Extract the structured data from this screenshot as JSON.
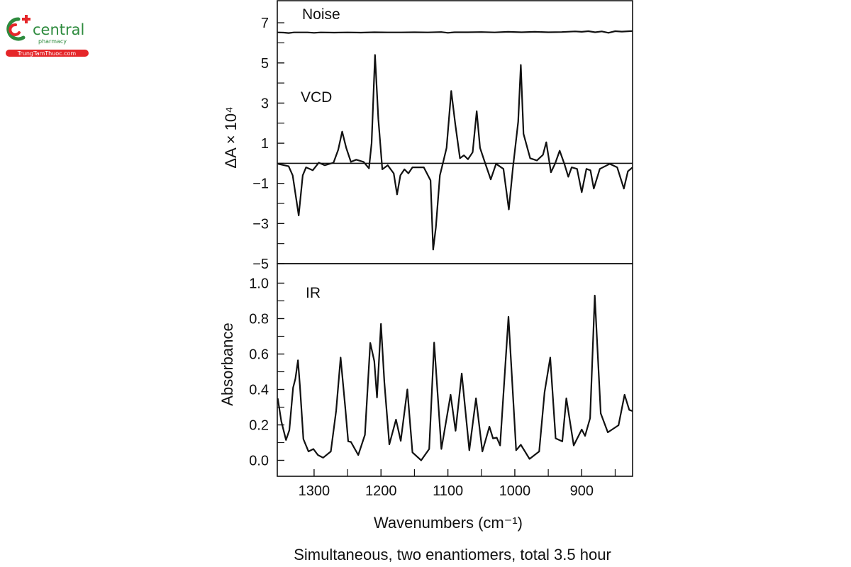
{
  "logo": {
    "brand": "central",
    "sub": "pharmacy",
    "site": "TrungTamThuoc.com",
    "colors": {
      "green": "#2e8b3e",
      "red": "#e52629"
    }
  },
  "figure": {
    "xlabel": "Wavenumbers (cm⁻¹)",
    "caption": "Simultaneous, two enantiomers, total 3.5 hour",
    "x_ticks": [
      "1300",
      "1200",
      "1100",
      "1000",
      "900"
    ],
    "x_tick_values": [
      1300,
      1200,
      1100,
      1000,
      900
    ],
    "x_minor_tick_values": [
      1250,
      1150,
      1050,
      950,
      850
    ],
    "xlim": [
      1355,
      824
    ],
    "x_reversed": true
  },
  "chart_data": [
    {
      "type": "line",
      "panel": "top",
      "ylabel": "ΔA × 10⁴",
      "ylim": [
        -5,
        8.1
      ],
      "y_ticks": [
        "7",
        "5",
        "3",
        "1",
        "−1",
        "−3",
        "−5"
      ],
      "y_tick_values": [
        7,
        5,
        3,
        1,
        -1,
        -3,
        -5
      ],
      "y_minor_tick_values": [
        6,
        4,
        2,
        0,
        -2,
        -4
      ],
      "zero_line": 0,
      "grid": false,
      "annotations": [
        "Noise",
        "VCD"
      ],
      "series": [
        {
          "name": "Noise",
          "points": [
            [
              1355,
              6.52
            ],
            [
              1345,
              6.51
            ],
            [
              1338,
              6.49
            ],
            [
              1330,
              6.52
            ],
            [
              1310,
              6.52
            ],
            [
              1300,
              6.5
            ],
            [
              1290,
              6.52
            ],
            [
              1270,
              6.51
            ],
            [
              1250,
              6.52
            ],
            [
              1230,
              6.51
            ],
            [
              1210,
              6.53
            ],
            [
              1190,
              6.52
            ],
            [
              1170,
              6.52
            ],
            [
              1150,
              6.53
            ],
            [
              1130,
              6.52
            ],
            [
              1110,
              6.54
            ],
            [
              1100,
              6.5
            ],
            [
              1090,
              6.53
            ],
            [
              1070,
              6.53
            ],
            [
              1050,
              6.54
            ],
            [
              1030,
              6.52
            ],
            [
              1010,
              6.55
            ],
            [
              990,
              6.53
            ],
            [
              970,
              6.55
            ],
            [
              950,
              6.53
            ],
            [
              930,
              6.54
            ],
            [
              910,
              6.57
            ],
            [
              900,
              6.55
            ],
            [
              890,
              6.58
            ],
            [
              880,
              6.53
            ],
            [
              870,
              6.57
            ],
            [
              860,
              6.5
            ],
            [
              850,
              6.58
            ],
            [
              840,
              6.56
            ],
            [
              824,
              6.59
            ]
          ]
        },
        {
          "name": "VCD",
          "points": [
            [
              1354,
              -0.03
            ],
            [
              1338,
              -0.15
            ],
            [
              1332,
              -0.6
            ],
            [
              1323,
              -2.6
            ],
            [
              1317,
              -0.6
            ],
            [
              1312,
              -0.2
            ],
            [
              1302,
              -0.35
            ],
            [
              1293,
              0.03
            ],
            [
              1284,
              -0.1
            ],
            [
              1271,
              0.03
            ],
            [
              1264,
              0.67
            ],
            [
              1258,
              1.58
            ],
            [
              1252,
              0.77
            ],
            [
              1245,
              0.07
            ],
            [
              1237,
              0.18
            ],
            [
              1226,
              0.07
            ],
            [
              1218,
              -0.25
            ],
            [
              1214,
              1.0
            ],
            [
              1209,
              5.4
            ],
            [
              1204,
              2.2
            ],
            [
              1198,
              -0.3
            ],
            [
              1190,
              -0.1
            ],
            [
              1181,
              -0.5
            ],
            [
              1176,
              -1.55
            ],
            [
              1171,
              -0.6
            ],
            [
              1165,
              -0.3
            ],
            [
              1159,
              -0.5
            ],
            [
              1153,
              -0.2
            ],
            [
              1136,
              -0.2
            ],
            [
              1126,
              -0.85
            ],
            [
              1122,
              -4.3
            ],
            [
              1118,
              -3.2
            ],
            [
              1112,
              -0.6
            ],
            [
              1107,
              0.07
            ],
            [
              1102,
              0.77
            ],
            [
              1095,
              3.6
            ],
            [
              1089,
              1.95
            ],
            [
              1082,
              0.25
            ],
            [
              1076,
              0.4
            ],
            [
              1070,
              0.2
            ],
            [
              1063,
              0.55
            ],
            [
              1057,
              2.6
            ],
            [
              1052,
              0.77
            ],
            [
              1045,
              0.07
            ],
            [
              1036,
              -0.8
            ],
            [
              1028,
              -0.03
            ],
            [
              1017,
              -0.28
            ],
            [
              1009,
              -2.3
            ],
            [
              1003,
              -0.28
            ],
            [
              995,
              2.07
            ],
            [
              991,
              4.9
            ],
            [
              987,
              1.47
            ],
            [
              977,
              0.25
            ],
            [
              967,
              0.14
            ],
            [
              958,
              0.42
            ],
            [
              953,
              1.05
            ],
            [
              946,
              -0.45
            ],
            [
              940,
              -0.03
            ],
            [
              933,
              0.63
            ],
            [
              926,
              -0.03
            ],
            [
              920,
              -0.67
            ],
            [
              915,
              -0.2
            ],
            [
              907,
              -0.28
            ],
            [
              900,
              -1.44
            ],
            [
              893,
              -0.28
            ],
            [
              887,
              -0.35
            ],
            [
              882,
              -1.26
            ],
            [
              873,
              -0.28
            ],
            [
              858,
              -0.03
            ],
            [
              847,
              -0.2
            ],
            [
              837,
              -1.26
            ],
            [
              831,
              -0.4
            ],
            [
              824,
              -0.2
            ]
          ]
        }
      ]
    },
    {
      "type": "line",
      "panel": "bottom",
      "ylabel": "Absorbance",
      "ylim": [
        -0.09,
        1.11
      ],
      "y_ticks": [
        "1.0",
        "0.8",
        "0.6",
        "0.4",
        "0.2",
        "0.0"
      ],
      "y_tick_values": [
        1.0,
        0.8,
        0.6,
        0.4,
        0.2,
        0.0
      ],
      "y_minor_tick_values": [
        0.9,
        0.7,
        0.5,
        0.3,
        0.1
      ],
      "grid": false,
      "annotations": [
        "IR"
      ],
      "series": [
        {
          "name": "IR",
          "points": [
            [
              1354.4,
              0.35
            ],
            [
              1349,
              0.22
            ],
            [
              1342,
              0.115
            ],
            [
              1337,
              0.17
            ],
            [
              1331.4,
              0.41
            ],
            [
              1328,
              0.46
            ],
            [
              1324,
              0.565
            ],
            [
              1321,
              0.41
            ],
            [
              1316,
              0.12
            ],
            [
              1308.4,
              0.05
            ],
            [
              1301,
              0.064
            ],
            [
              1294.3,
              0.03
            ],
            [
              1286.5,
              0.015
            ],
            [
              1275,
              0.05
            ],
            [
              1267,
              0.28
            ],
            [
              1260.4,
              0.58
            ],
            [
              1253.6,
              0.305
            ],
            [
              1249,
              0.107
            ],
            [
              1245,
              0.104
            ],
            [
              1234,
              0.03
            ],
            [
              1224,
              0.144
            ],
            [
              1216,
              0.663
            ],
            [
              1210,
              0.56
            ],
            [
              1206,
              0.355
            ],
            [
              1200,
              0.77
            ],
            [
              1195,
              0.44
            ],
            [
              1187.5,
              0.09
            ],
            [
              1177.6,
              0.23
            ],
            [
              1170.5,
              0.11
            ],
            [
              1160.6,
              0.4
            ],
            [
              1153,
              0.045
            ],
            [
              1140,
              0.0
            ],
            [
              1128,
              0.064
            ],
            [
              1120.6,
              0.665
            ],
            [
              1109.7,
              0.064
            ],
            [
              1096,
              0.37
            ],
            [
              1088.5,
              0.167
            ],
            [
              1079.3,
              0.49
            ],
            [
              1068,
              0.057
            ],
            [
              1058,
              0.35
            ],
            [
              1048.5,
              0.05
            ],
            [
              1038,
              0.19
            ],
            [
              1032.6,
              0.124
            ],
            [
              1027,
              0.128
            ],
            [
              1022,
              0.084
            ],
            [
              1009.5,
              0.81
            ],
            [
              998,
              0.057
            ],
            [
              991,
              0.088
            ],
            [
              978,
              0.008
            ],
            [
              963.6,
              0.05
            ],
            [
              955.5,
              0.385
            ],
            [
              947,
              0.58
            ],
            [
              939,
              0.124
            ],
            [
              929,
              0.107
            ],
            [
              923,
              0.35
            ],
            [
              912,
              0.084
            ],
            [
              900,
              0.174
            ],
            [
              895,
              0.138
            ],
            [
              887.5,
              0.238
            ],
            [
              880.5,
              0.93
            ],
            [
              871.6,
              0.265
            ],
            [
              861,
              0.158
            ],
            [
              845,
              0.198
            ],
            [
              836,
              0.37
            ],
            [
              829,
              0.285
            ],
            [
              824,
              0.278
            ]
          ]
        }
      ]
    }
  ]
}
